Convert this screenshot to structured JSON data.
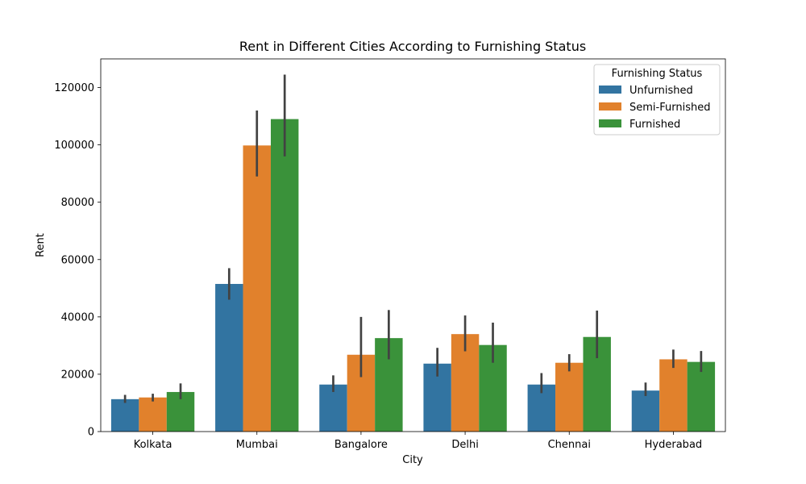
{
  "chart_data": {
    "type": "bar",
    "title": "Rent in Different Cities According to Furnishing Status",
    "xlabel": "City",
    "ylabel": "Rent",
    "categories": [
      "Kolkata",
      "Mumbai",
      "Bangalore",
      "Delhi",
      "Chennai",
      "Hyderabad"
    ],
    "ylim": [
      0,
      130000
    ],
    "yticks": [
      0,
      20000,
      40000,
      60000,
      80000,
      100000,
      120000
    ],
    "ytick_labels": [
      "0",
      "20000",
      "40000",
      "60000",
      "80000",
      "100000",
      "120000"
    ],
    "legend": {
      "title": "Furnishing Status",
      "placement": "top-right"
    },
    "grid": false,
    "series": [
      {
        "name": "Unfurnished",
        "color": "#3274a1",
        "values": [
          11300,
          51500,
          16400,
          23700,
          16400,
          14300
        ],
        "ci_low": [
          10000,
          46000,
          13800,
          19200,
          13400,
          12400
        ],
        "ci_high": [
          12800,
          57000,
          19600,
          29200,
          20400,
          17100
        ]
      },
      {
        "name": "Semi-Furnished",
        "color": "#e1812c",
        "values": [
          11900,
          99800,
          26800,
          34000,
          24000,
          25200
        ],
        "ci_low": [
          10500,
          89000,
          19000,
          28000,
          21000,
          22200
        ],
        "ci_high": [
          13200,
          112000,
          40000,
          40500,
          27000,
          28600
        ]
      },
      {
        "name": "Furnished",
        "color": "#3a923a",
        "values": [
          13800,
          109000,
          32600,
          30200,
          33000,
          24300
        ],
        "ci_low": [
          11300,
          96000,
          25200,
          24000,
          25600,
          20800
        ],
        "ci_high": [
          16800,
          124500,
          42400,
          38000,
          42200,
          28100
        ]
      }
    ]
  }
}
